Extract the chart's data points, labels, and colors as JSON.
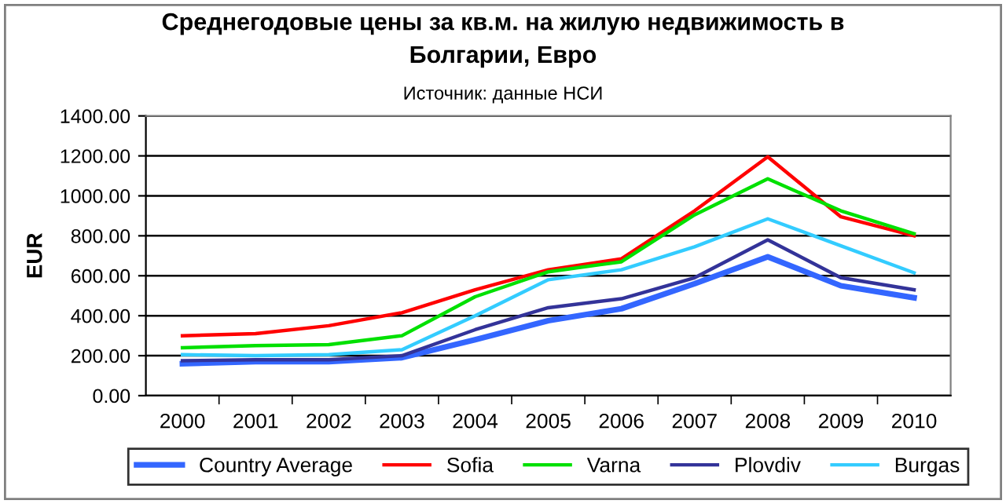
{
  "chart_data": {
    "type": "line",
    "title": "Среднегодовые цены за кв.м. на жилую недвижимость в\nБолгарии, Евро",
    "subtitle": "Источник: данные НСИ",
    "ylabel": "EUR",
    "categories": [
      "2000",
      "2001",
      "2002",
      "2003",
      "2004",
      "2005",
      "2006",
      "2007",
      "2008",
      "2009",
      "2010"
    ],
    "series": [
      {
        "name": "Country Average",
        "color": "#3366ff",
        "values": [
          160,
          170,
          170,
          190,
          280,
          375,
          435,
          560,
          695,
          550,
          490
        ]
      },
      {
        "name": "Sofia",
        "color": "#ff0000",
        "values": [
          300,
          310,
          350,
          415,
          530,
          630,
          685,
          925,
          1195,
          895,
          800
        ]
      },
      {
        "name": "Varna",
        "color": "#00e000",
        "values": [
          240,
          250,
          255,
          300,
          495,
          620,
          670,
          905,
          1085,
          925,
          810
        ]
      },
      {
        "name": "Plovdiv",
        "color": "#333399",
        "values": [
          175,
          180,
          180,
          200,
          330,
          440,
          485,
          590,
          780,
          590,
          530
        ]
      },
      {
        "name": "Burgas",
        "color": "#33ccff",
        "values": [
          205,
          200,
          205,
          230,
          400,
          580,
          630,
          745,
          885,
          750,
          615
        ]
      }
    ],
    "ylim": [
      0,
      1400
    ],
    "yticks": [
      {
        "value": 0,
        "label": "0.00"
      },
      {
        "value": 200,
        "label": "200.00"
      },
      {
        "value": 400,
        "label": "400.00"
      },
      {
        "value": 600,
        "label": "600.00"
      },
      {
        "value": 800,
        "label": "800.00"
      },
      {
        "value": 1000,
        "label": "1000.00"
      },
      {
        "value": 1200,
        "label": "1200.00"
      },
      {
        "value": 1400,
        "label": "1400.00"
      }
    ],
    "grid": "y",
    "legend": "bottom",
    "marker": "none",
    "line_style": "solid"
  }
}
